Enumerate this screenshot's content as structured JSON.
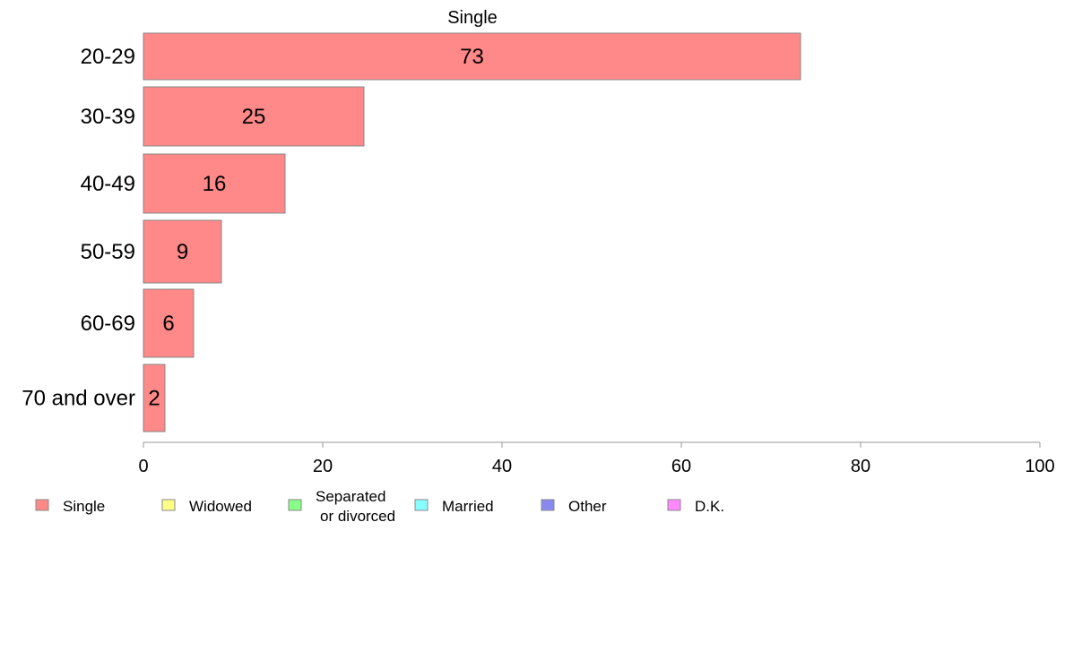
{
  "chart_data": {
    "type": "bar",
    "orientation": "horizontal",
    "title": "Single",
    "xlabel": "",
    "ylabel": "",
    "categories": [
      "20-29",
      "30-39",
      "40-49",
      "50-59",
      "60-69",
      "70 and over"
    ],
    "series": [
      {
        "name": "Single",
        "values": [
          73.3,
          24.6,
          15.8,
          8.7,
          5.6,
          2.4
        ],
        "data_labels": [
          "73",
          "25",
          "16",
          "9",
          "6",
          "2"
        ],
        "color": "#ff8888"
      }
    ],
    "xlim": [
      0,
      100
    ],
    "x_ticks": [
      "0",
      "20",
      "40",
      "60",
      "80",
      "100"
    ],
    "grid": false,
    "legend": {
      "placement": "bottom",
      "items": [
        {
          "label": "Single",
          "color": "#ff8888"
        },
        {
          "label": "Widowed",
          "color": "#ffff88"
        },
        {
          "label": [
            "Separated",
            "or divorced"
          ],
          "color": "#88ff88"
        },
        {
          "label": "Married",
          "color": "#88ffff"
        },
        {
          "label": "Other",
          "color": "#8888ee"
        },
        {
          "label": "D.K.",
          "color": "#ff88ff"
        }
      ]
    }
  }
}
